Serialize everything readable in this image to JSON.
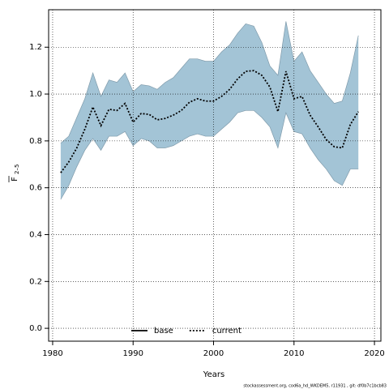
{
  "chart_data": {
    "type": "line",
    "xlabel": "Years",
    "ylabel": "F",
    "ylabel_sub": "2–5",
    "footer": "stockassessment.org, cod6a_hd_WKDEM5, r11931 , git: df0b7c1bcb83",
    "x": [
      1981,
      1982,
      1983,
      1984,
      1985,
      1986,
      1987,
      1988,
      1989,
      1990,
      1991,
      1992,
      1993,
      1994,
      1995,
      1996,
      1997,
      1998,
      1999,
      2000,
      2001,
      2002,
      2003,
      2004,
      2005,
      2006,
      2007,
      2008,
      2009,
      2010,
      2011,
      2012,
      2013,
      2014,
      2015,
      2016,
      2017,
      2018
    ],
    "values": [
      0.664,
      0.71,
      0.77,
      0.85,
      0.945,
      0.865,
      0.935,
      0.93,
      0.96,
      0.88,
      0.917,
      0.913,
      0.89,
      0.896,
      0.91,
      0.93,
      0.965,
      0.98,
      0.97,
      0.97,
      0.99,
      1.02,
      1.065,
      1.097,
      1.1,
      1.08,
      1.03,
      0.925,
      1.097,
      0.98,
      0.99,
      0.91,
      0.86,
      0.806,
      0.775,
      0.77,
      0.87,
      0.925
    ],
    "upper": [
      0.79,
      0.82,
      0.9,
      0.98,
      1.09,
      0.99,
      1.06,
      1.05,
      1.09,
      1.01,
      1.04,
      1.035,
      1.02,
      1.05,
      1.07,
      1.11,
      1.15,
      1.15,
      1.14,
      1.14,
      1.18,
      1.21,
      1.26,
      1.3,
      1.29,
      1.22,
      1.12,
      1.08,
      1.31,
      1.14,
      1.18,
      1.1,
      1.05,
      1.0,
      0.96,
      0.97,
      1.09,
      1.25
    ],
    "lower": [
      0.55,
      0.61,
      0.69,
      0.76,
      0.81,
      0.76,
      0.82,
      0.82,
      0.84,
      0.78,
      0.81,
      0.8,
      0.77,
      0.77,
      0.78,
      0.8,
      0.82,
      0.83,
      0.82,
      0.82,
      0.85,
      0.88,
      0.92,
      0.93,
      0.93,
      0.9,
      0.86,
      0.77,
      0.92,
      0.84,
      0.83,
      0.77,
      0.72,
      0.68,
      0.63,
      0.61,
      0.68,
      0.68
    ],
    "color": "#000000",
    "band_color": "#a3c4d6",
    "legend": [
      {
        "name": "base",
        "color": "#000000",
        "style": "solid"
      },
      {
        "name": "current",
        "color": "#000000",
        "style": "dotted"
      }
    ],
    "legend_position": "bottom",
    "xlim": [
      1979.5,
      2020.8
    ],
    "ylim": [
      -0.055,
      1.36
    ],
    "xticks": [
      1980,
      1990,
      2000,
      2010,
      2020
    ],
    "yticks": [
      {
        "value": 0,
        "label": "0.0"
      },
      {
        "value": 0.2,
        "label": "0.2"
      },
      {
        "value": 0.4,
        "label": "0.4"
      },
      {
        "value": 0.6,
        "label": "0.6"
      },
      {
        "value": 0.8,
        "label": "0.8"
      },
      {
        "value": 1.0,
        "label": "1.0"
      },
      {
        "value": 1.2,
        "label": "1.2"
      }
    ],
    "grid": true
  }
}
